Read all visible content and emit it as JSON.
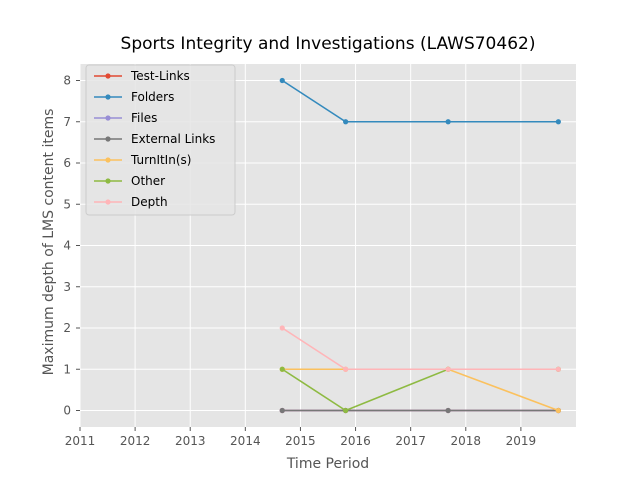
{
  "chart_data": {
    "type": "line",
    "title": "Sports Integrity and Investigations (LAWS70462)",
    "xlabel": "Time Period",
    "ylabel": "Maximum depth of LMS content items",
    "xlim": [
      2011.0,
      2020.0
    ],
    "ylim": [
      -0.4,
      8.4
    ],
    "xticks": [
      "2011",
      "2012",
      "2013",
      "2014",
      "2015",
      "2016",
      "2017",
      "2018",
      "2019"
    ],
    "yticks": [
      "0",
      "1",
      "2",
      "3",
      "4",
      "5",
      "6",
      "7",
      "8"
    ],
    "grid": true,
    "legend_position": "upper-left",
    "series": [
      {
        "name": "Test-Links",
        "color": "#e24a33",
        "x": [
          2014.67,
          2015.82,
          2017.68,
          2019.68
        ],
        "y": [
          0,
          0,
          0,
          0
        ]
      },
      {
        "name": "Folders",
        "color": "#348abd",
        "x": [
          2014.67,
          2015.82,
          2017.68,
          2019.68
        ],
        "y": [
          8,
          7,
          7,
          7
        ]
      },
      {
        "name": "Files",
        "color": "#988ed5",
        "x": [
          2014.67,
          2015.82,
          2017.68,
          2019.68
        ],
        "y": [
          0,
          0,
          0,
          0
        ]
      },
      {
        "name": "External Links",
        "color": "#777777",
        "x": [
          2014.67,
          2015.82,
          2017.68,
          2019.68
        ],
        "y": [
          0,
          0,
          0,
          0
        ]
      },
      {
        "name": "TurnItIn(s)",
        "color": "#fbc15e",
        "x": [
          2014.67,
          2015.82,
          2017.68,
          2019.68
        ],
        "y": [
          1,
          1,
          1,
          0
        ]
      },
      {
        "name": "Other",
        "color": "#8eba42",
        "x": [
          2014.67,
          2015.82,
          2017.68,
          2019.68
        ],
        "y": [
          1,
          0,
          1,
          1
        ]
      },
      {
        "name": "Depth",
        "color": "#ffb5b8",
        "x": [
          2014.67,
          2015.82,
          2017.68,
          2019.68
        ],
        "y": [
          2,
          1,
          1,
          1
        ]
      }
    ]
  }
}
